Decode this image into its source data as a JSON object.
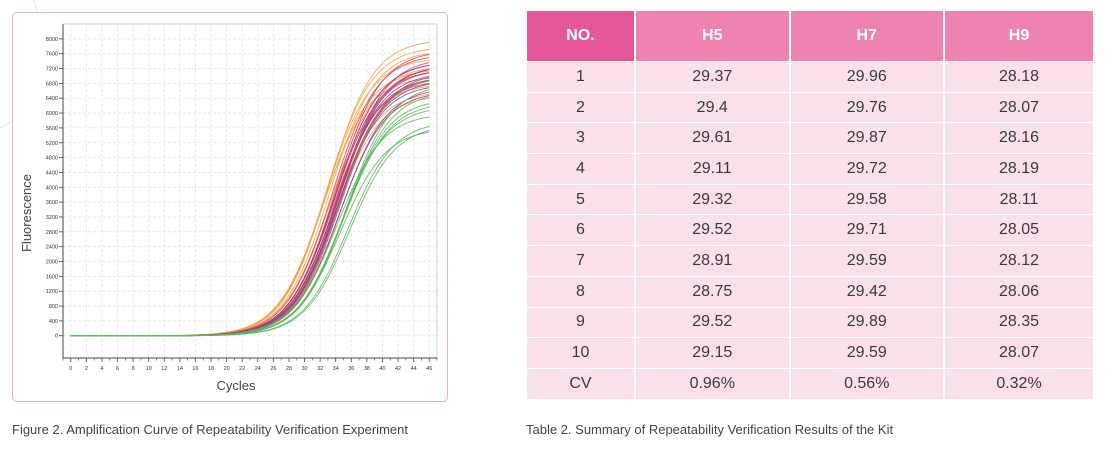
{
  "chart_data": {
    "type": "line",
    "xlabel": "Cycles",
    "ylabel": "Fluorescence",
    "xlim": [
      -1,
      47
    ],
    "ylim": [
      -600,
      8400
    ],
    "x_ticks": [
      0,
      2,
      4,
      6,
      8,
      10,
      12,
      14,
      16,
      18,
      20,
      22,
      24,
      26,
      28,
      30,
      32,
      34,
      36,
      38,
      40,
      42,
      44,
      46
    ],
    "y_ticks": [
      0,
      400,
      800,
      1200,
      1600,
      2000,
      2400,
      2800,
      3200,
      3600,
      4000,
      4400,
      4800,
      5200,
      5600,
      6000,
      6400,
      6800,
      7200,
      7600,
      8000
    ],
    "grid": true,
    "legend": "none",
    "series_groups": [
      {
        "color": "#f5a142",
        "plateau": [
          7000,
          7500,
          7800,
          8000,
          7700,
          7300,
          6800,
          6600,
          7200,
          6500
        ],
        "midpoint": [
          32.3,
          32.6,
          32.8,
          33.0,
          33.2,
          33.4,
          33.0,
          33.6,
          32.5,
          33.8
        ]
      },
      {
        "color": "#e0435a",
        "plateau": [
          7600,
          7400,
          7200,
          7000,
          7500,
          6900,
          7300,
          7100,
          7700,
          7000
        ],
        "midpoint": [
          33.5,
          33.8,
          34.0,
          34.2,
          34.4,
          33.6,
          34.1,
          34.6,
          33.9,
          34.3
        ]
      },
      {
        "color": "#9a3f8f",
        "plateau": [
          7200,
          7000,
          6800,
          7300,
          6600,
          7100,
          6900,
          7400,
          6700,
          7000
        ],
        "midpoint": [
          33.7,
          33.9,
          34.1,
          34.3,
          34.5,
          34.0,
          34.2,
          33.8,
          34.6,
          34.4
        ]
      },
      {
        "color": "#5cb85c",
        "plateau": [
          6000,
          5600,
          6400,
          6800,
          5800,
          6200,
          6600,
          7000,
          5700,
          6300
        ],
        "midpoint": [
          34.2,
          34.6,
          35.0,
          35.3,
          35.6,
          34.8,
          35.2,
          34.4,
          35.8,
          35.0
        ]
      }
    ],
    "cycles": [
      0,
      46
    ]
  },
  "figure_caption": "Figure 2. Amplification Curve of Repeatability Verification Experiment",
  "table": {
    "headers": [
      "NO.",
      "H5",
      "H7",
      "H9"
    ],
    "rows": [
      [
        "1",
        "29.37",
        "29.96",
        "28.18"
      ],
      [
        "2",
        "29.4",
        "29.76",
        "28.07"
      ],
      [
        "3",
        "29.61",
        "29.87",
        "28.16"
      ],
      [
        "4",
        "29.11",
        "29.72",
        "28.19"
      ],
      [
        "5",
        "29.32",
        "29.58",
        "28.11"
      ],
      [
        "6",
        "29.52",
        "29.71",
        "28.05"
      ],
      [
        "7",
        "28.91",
        "29.59",
        "28.12"
      ],
      [
        "8",
        "28.75",
        "29.42",
        "28.06"
      ],
      [
        "9",
        "29.52",
        "29.89",
        "28.35"
      ],
      [
        "10",
        "29.15",
        "29.59",
        "28.07"
      ],
      [
        "CV",
        "0.96%",
        "0.56%",
        "0.32%"
      ]
    ]
  },
  "table_caption": "Table 2. Summary of Repeatability Verification Results of the Kit"
}
